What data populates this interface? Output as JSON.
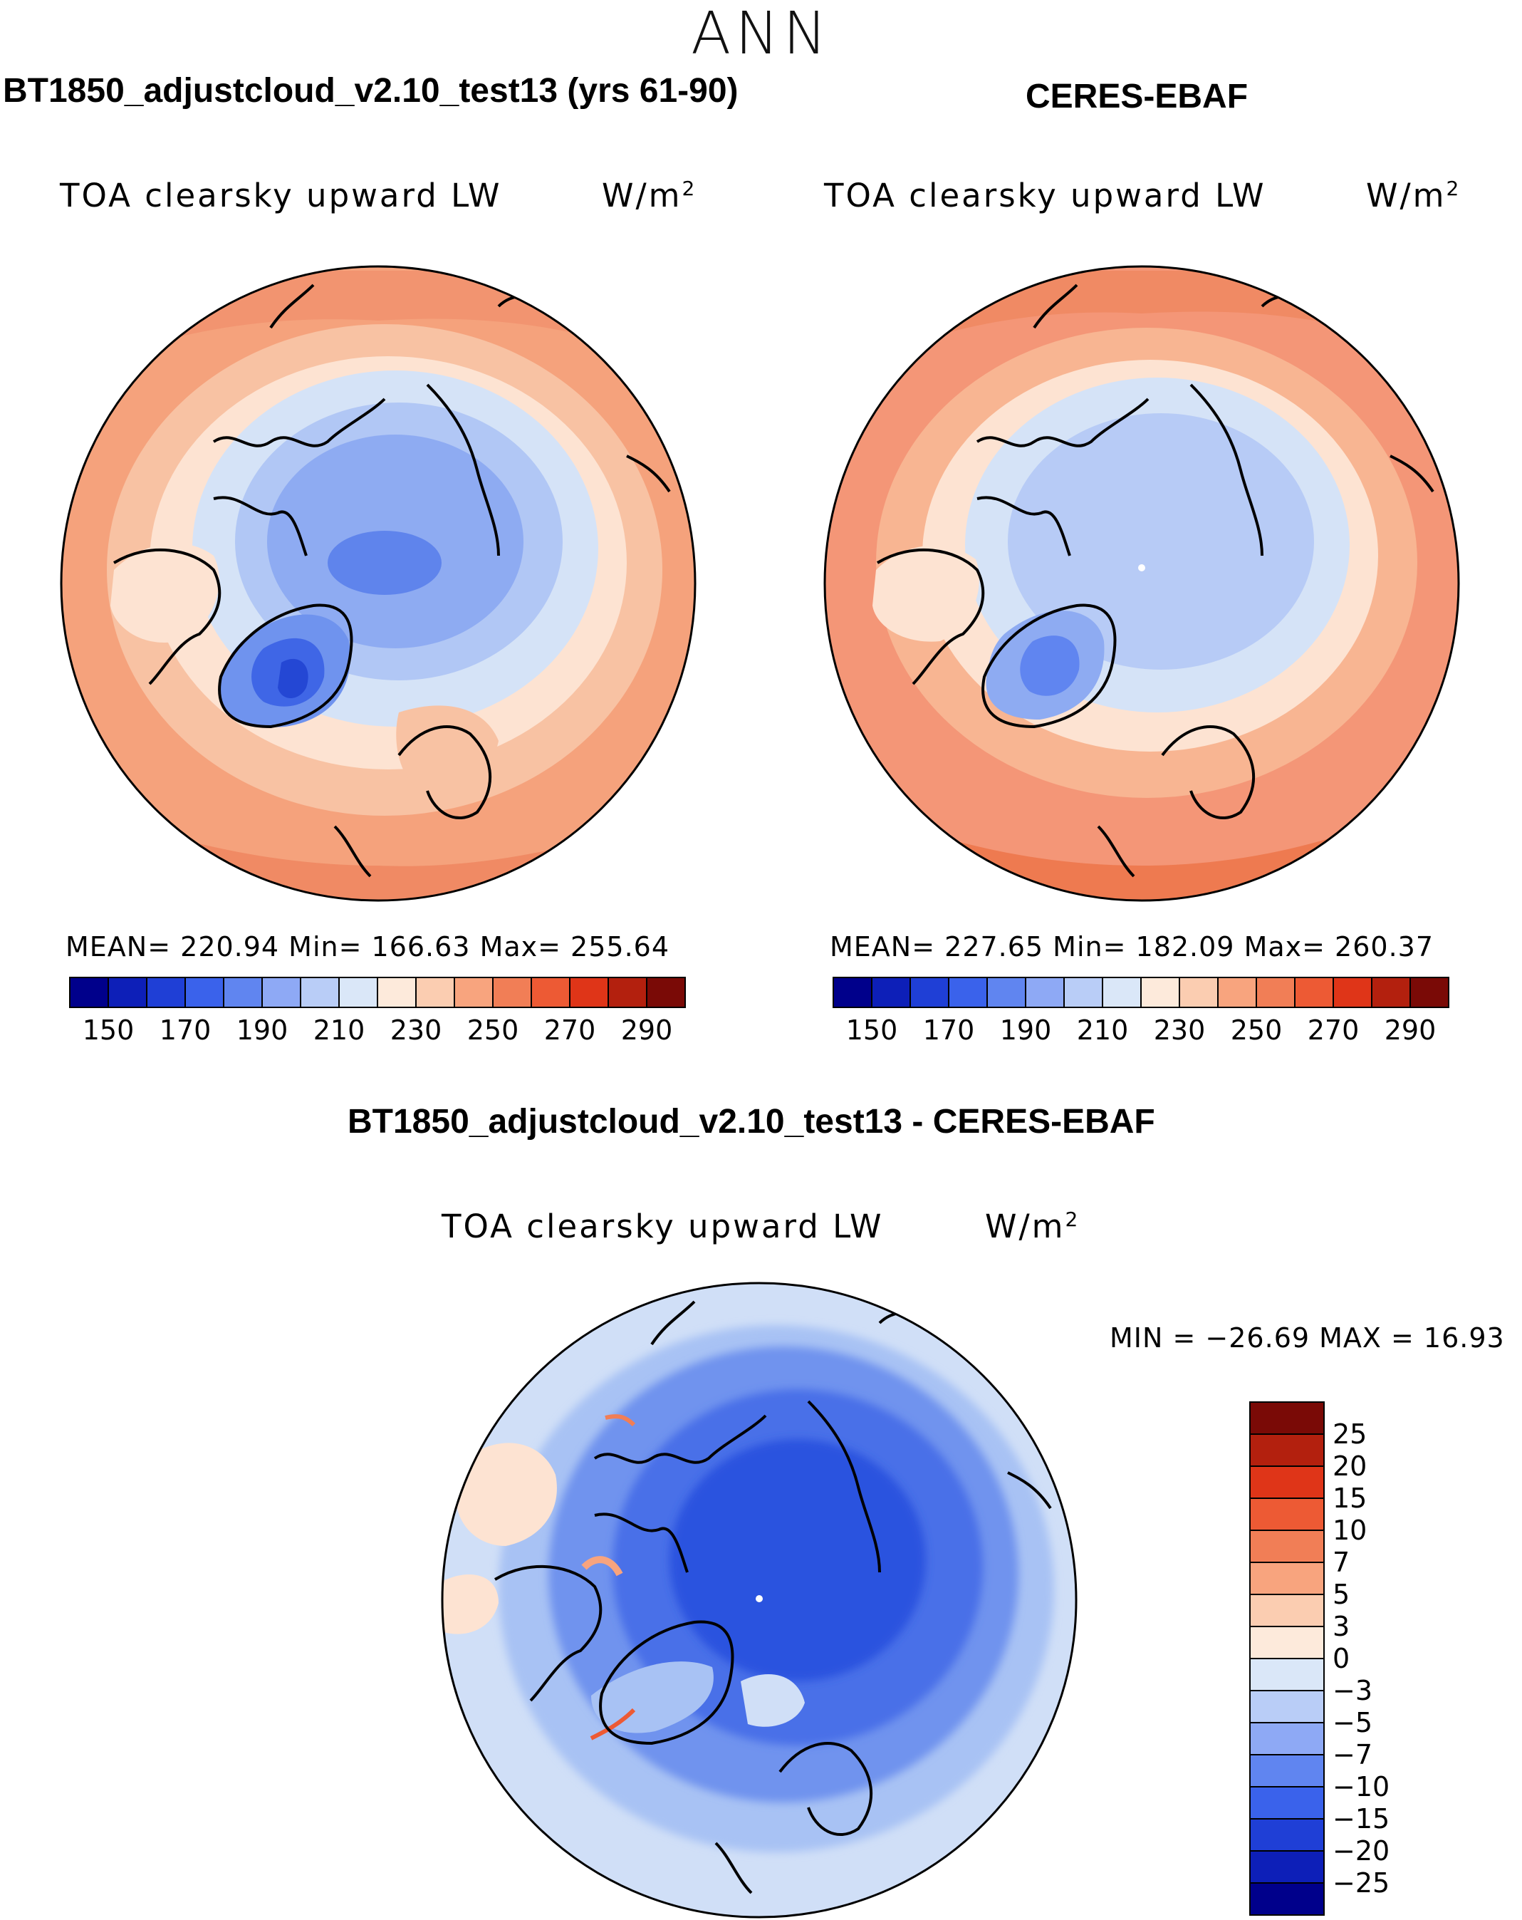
{
  "figure": {
    "season": "ANN",
    "panel_top_left": {
      "title": "BT1850_adjustcloud_v2.10_test13 (yrs 61-90)",
      "variable": "TOA clearsky upward LW",
      "units_base": "W/m",
      "units_exp": "2",
      "stats": "MEAN= 220.94   Min= 166.63   Max= 255.64",
      "mean": 220.94,
      "min": 166.63,
      "max": 255.64
    },
    "panel_top_right": {
      "title": "CERES-EBAF",
      "variable": "TOA clearsky upward LW",
      "units_base": "W/m",
      "units_exp": "2",
      "stats": "MEAN= 227.65   Min= 182.09   Max= 260.37",
      "mean": 227.65,
      "min": 182.09,
      "max": 260.37
    },
    "panel_bottom": {
      "title": "BT1850_adjustcloud_v2.10_test13 - CERES-EBAF",
      "variable": "TOA clearsky upward LW",
      "units_base": "W/m",
      "units_exp": "2",
      "stats": "MIN = −26.69 MAX =   16.93",
      "min": -26.69,
      "max": 16.93
    },
    "colorbar_top": {
      "tick_labels": [
        "150",
        "170",
        "190",
        "210",
        "230",
        "250",
        "270",
        "290"
      ],
      "colors": [
        "#00008b",
        "#0d1fb8",
        "#1f3fd6",
        "#3a62eb",
        "#6085f0",
        "#8ea9f5",
        "#b9cdf7",
        "#dae7f8",
        "#fdeadb",
        "#fbcdb1",
        "#f8a47e",
        "#f17e56",
        "#ed5a34",
        "#df3518",
        "#b3200e",
        "#7a0a06"
      ]
    },
    "colorbar_diff": {
      "tick_labels": [
        "25",
        "20",
        "15",
        "10",
        "7",
        "5",
        "3",
        "0",
        "−3",
        "−5",
        "−7",
        "−10",
        "−15",
        "−20",
        "−25"
      ],
      "colors": [
        "#7a0a06",
        "#b3200e",
        "#df3518",
        "#ed5a34",
        "#f17e56",
        "#f8a47e",
        "#fbcdb1",
        "#fdeadb",
        "#dae7f8",
        "#b9cdf7",
        "#8ea9f5",
        "#6085f0",
        "#3a62eb",
        "#1f3fd6",
        "#0d1fb8",
        "#00008b"
      ]
    },
    "map_colors": {
      "outer_warm": "#f5a27c",
      "warm2": "#f8c2a3",
      "neutral_warm": "#fde3d2",
      "light_blue": "#d5e3f7",
      "mid_blue": "#9fbaf3",
      "blue": "#6f93ee",
      "deep_blue": "#3f66e6",
      "diff_base": "#5c82ec",
      "diff_deep": "#2b52df",
      "diff_light": "#a8c2f4"
    }
  }
}
